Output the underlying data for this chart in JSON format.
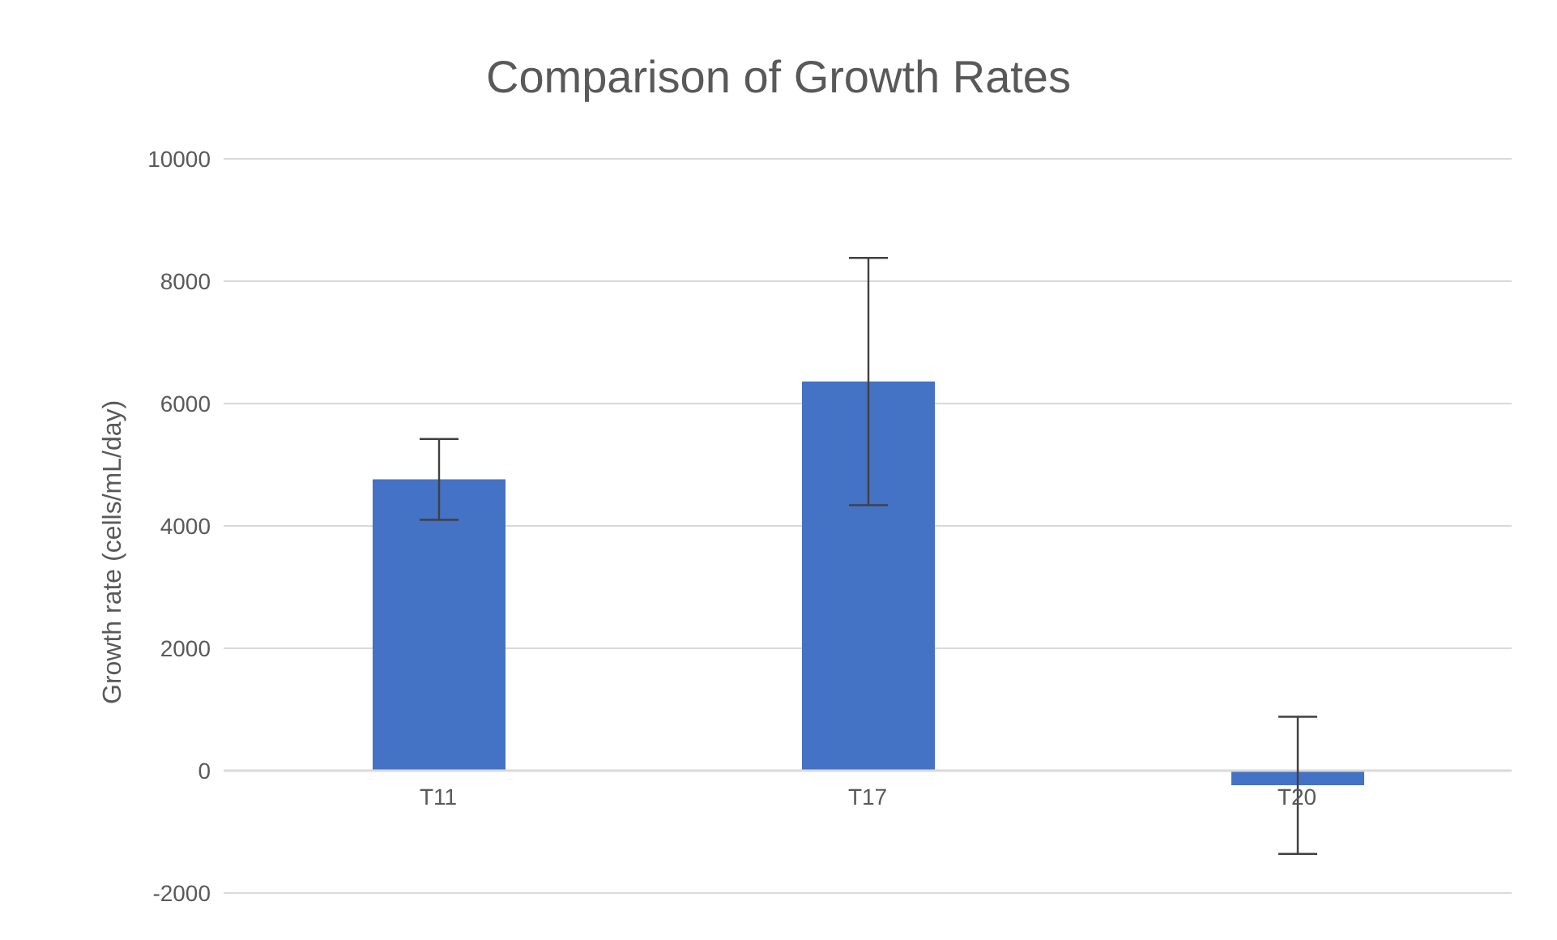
{
  "chart_data": {
    "type": "bar",
    "title": "Comparison of Growth Rates",
    "ylabel": "Growth rate (cells/mL/day)",
    "categories": [
      "T11",
      "T17",
      "T20"
    ],
    "values": [
      4760,
      6360,
      -240
    ],
    "errors": [
      660,
      2020,
      1120
    ],
    "color": "#4472c4",
    "ylim": [
      -2000,
      10000
    ],
    "yticks": [
      -2000,
      0,
      2000,
      4000,
      6000,
      8000,
      10000
    ],
    "grid": "y",
    "legend": false
  }
}
